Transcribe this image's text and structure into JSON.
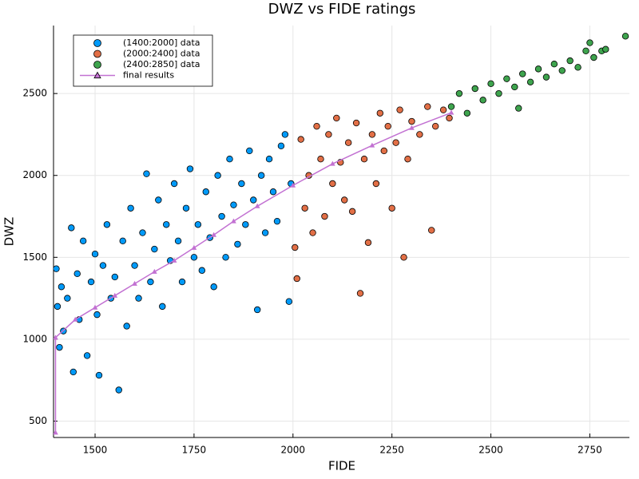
{
  "chart_data": {
    "type": "scatter",
    "title": "DWZ vs FIDE ratings",
    "x_label": "FIDE",
    "y_label": "DWZ",
    "xlim": [
      1395,
      2850
    ],
    "ylim": [
      400,
      2915
    ],
    "xticks": [
      1500,
      1750,
      2000,
      2250,
      2500,
      2750
    ],
    "yticks": [
      500,
      1000,
      1500,
      2000,
      2500
    ],
    "grid": true,
    "legend": "top-left",
    "series": [
      {
        "name": "(1400:2000] data",
        "color": "#009af9",
        "marker": "circle",
        "x": [
          1402,
          1405,
          1410,
          1415,
          1420,
          1430,
          1440,
          1445,
          1455,
          1460,
          1470,
          1480,
          1490,
          1500,
          1505,
          1510,
          1520,
          1530,
          1540,
          1550,
          1560,
          1570,
          1580,
          1590,
          1600,
          1610,
          1620,
          1630,
          1640,
          1650,
          1660,
          1670,
          1680,
          1690,
          1700,
          1710,
          1720,
          1730,
          1740,
          1750,
          1760,
          1770,
          1780,
          1790,
          1800,
          1810,
          1820,
          1830,
          1840,
          1850,
          1860,
          1870,
          1880,
          1890,
          1900,
          1910,
          1920,
          1930,
          1940,
          1950,
          1960,
          1970,
          1980,
          1990,
          1995
        ],
        "values": [
          1430,
          1200,
          950,
          1320,
          1050,
          1250,
          1680,
          800,
          1400,
          1120,
          1600,
          900,
          1350,
          1520,
          1150,
          780,
          1450,
          1700,
          1250,
          1380,
          690,
          1600,
          1080,
          1800,
          1450,
          1250,
          1650,
          2010,
          1350,
          1550,
          1850,
          1200,
          1700,
          1480,
          1950,
          1600,
          1350,
          1800,
          2040,
          1500,
          1700,
          1420,
          1900,
          1620,
          1320,
          2000,
          1750,
          1500,
          2100,
          1820,
          1580,
          1950,
          1700,
          2150,
          1850,
          1180,
          2000,
          1650,
          2100,
          1900,
          1720,
          2180,
          2250,
          1230,
          1950
        ]
      },
      {
        "name": "(2000:2400] data",
        "color": "#e26f46",
        "marker": "circle",
        "x": [
          2005,
          2010,
          2020,
          2030,
          2040,
          2050,
          2060,
          2070,
          2080,
          2090,
          2100,
          2110,
          2120,
          2130,
          2140,
          2150,
          2160,
          2170,
          2180,
          2190,
          2200,
          2210,
          2220,
          2230,
          2240,
          2250,
          2260,
          2270,
          2280,
          2290,
          2300,
          2320,
          2340,
          2350,
          2360,
          2380,
          2395
        ],
        "values": [
          1560,
          1370,
          2220,
          1800,
          2000,
          1650,
          2300,
          2100,
          1750,
          2250,
          1950,
          2350,
          2080,
          1850,
          2200,
          1780,
          2320,
          1280,
          2100,
          1590,
          2250,
          1950,
          2380,
          2150,
          2300,
          1800,
          2200,
          2400,
          1500,
          2100,
          2330,
          2250,
          2420,
          1665,
          2300,
          2400,
          2350
        ]
      },
      {
        "name": "(2400:2850] data",
        "color": "#3ea44e",
        "marker": "circle",
        "x": [
          2400,
          2420,
          2440,
          2460,
          2480,
          2500,
          2520,
          2540,
          2560,
          2570,
          2580,
          2600,
          2620,
          2640,
          2660,
          2680,
          2700,
          2720,
          2740,
          2750,
          2760,
          2780,
          2790,
          2840
        ],
        "values": [
          2420,
          2500,
          2380,
          2530,
          2460,
          2560,
          2500,
          2590,
          2540,
          2410,
          2620,
          2570,
          2650,
          2600,
          2680,
          2640,
          2700,
          2660,
          2760,
          2810,
          2720,
          2760,
          2770,
          2850
        ]
      },
      {
        "name": "final results",
        "color": "#c271d2",
        "marker": "triangle",
        "line": true,
        "x": [
          1400,
          1400,
          1450,
          1500,
          1550,
          1600,
          1650,
          1700,
          1750,
          1800,
          1850,
          1910,
          2000,
          2100,
          2200,
          2300,
          2400
        ],
        "values": [
          430,
          1010,
          1120,
          1193,
          1266,
          1339,
          1412,
          1480,
          1558,
          1637,
          1720,
          1812,
          1939,
          2071,
          2183,
          2290,
          2383
        ]
      }
    ]
  }
}
